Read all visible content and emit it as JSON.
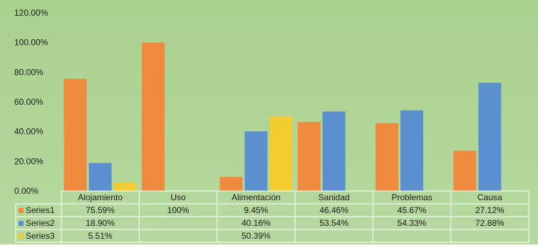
{
  "chart_data": {
    "type": "bar",
    "title": "",
    "xlabel": "",
    "ylabel": "",
    "ylim": [
      0,
      1.2
    ],
    "ytick_labels": [
      "0.00%",
      "20.00%",
      "40.00%",
      "60.00%",
      "80.00%",
      "100.00%",
      "120.00%"
    ],
    "grid": false,
    "legend": "data-table-bottom",
    "categories": [
      "Alojamiento",
      "Uso",
      "Alimentación",
      "Sanidad",
      "Problemas",
      "Causa"
    ],
    "series": [
      {
        "name": "Series1",
        "color": "#f08a3c",
        "values": [
          0.7559,
          1.0,
          0.0945,
          0.4646,
          0.4567,
          0.2712
        ],
        "labels": [
          "75.59%",
          "100%",
          "9.45%",
          "46.46%",
          "45.67%",
          "27.12%"
        ]
      },
      {
        "name": "Series2",
        "color": "#5b8fd0",
        "values": [
          0.189,
          null,
          0.4016,
          0.5354,
          0.5433,
          0.7288
        ],
        "labels": [
          "18.90%",
          "",
          "40.16%",
          "53.54%",
          "54.33%",
          "72.88%"
        ]
      },
      {
        "name": "Series3",
        "color": "#f2cd2f",
        "values": [
          0.0551,
          null,
          0.5039,
          null,
          null,
          null
        ],
        "labels": [
          "5.51%",
          "",
          "50.39%",
          "",
          "",
          ""
        ]
      }
    ]
  }
}
